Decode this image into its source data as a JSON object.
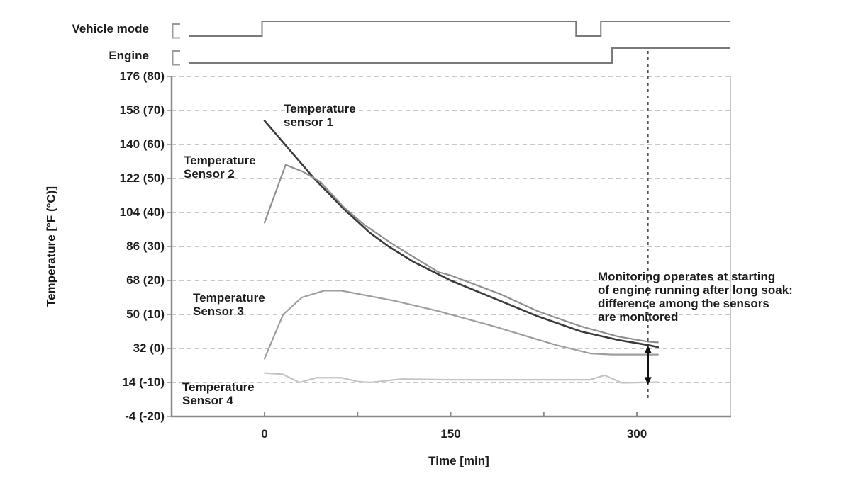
{
  "page": {
    "background": "#ffffff"
  },
  "signals": {
    "color": "#7a7a7a",
    "bracket_color": "#9a9a9a",
    "rows": [
      {
        "id": "vehicle_mode",
        "label": "Vehicle mode",
        "breakpoints_min": [
          [
            -61,
            0
          ],
          [
            -2,
            1
          ],
          [
            251,
            0
          ],
          [
            271,
            1
          ]
        ],
        "end_min": 375
      },
      {
        "id": "engine",
        "label": "Engine",
        "breakpoints_min": [
          [
            -61,
            0
          ],
          [
            280,
            1
          ]
        ],
        "end_min": 375
      }
    ]
  },
  "chart_data": {
    "type": "line",
    "title": "",
    "xlabel": "Time [min]",
    "ylabel": "Temperature [°F (°C)]",
    "x_unit": "min",
    "y_unit": "°F (°C)",
    "xlim_min": [
      -75,
      375
    ],
    "ylim_c": [
      -20,
      80
    ],
    "grid": "horizontal dashed",
    "x_ticks": [
      {
        "t": 0,
        "label": "0"
      },
      {
        "t": 75,
        "label": ""
      },
      {
        "t": 150,
        "label": "150"
      },
      {
        "t": 225,
        "label": ""
      },
      {
        "t": 300,
        "label": "300"
      }
    ],
    "y_ticks": [
      {
        "c": 80,
        "label": "176 (80)"
      },
      {
        "c": 70,
        "label": "158 (70)"
      },
      {
        "c": 60,
        "label": "140 (60)"
      },
      {
        "c": 50,
        "label": "122 (50)"
      },
      {
        "c": 40,
        "label": "104 (40)"
      },
      {
        "c": 30,
        "label": "86 (30)"
      },
      {
        "c": 20,
        "label": "68 (20)"
      },
      {
        "c": 10,
        "label": "50 (10)"
      },
      {
        "c": 0,
        "label": "32 (0)"
      },
      {
        "c": -10,
        "label": "14 (-10)"
      },
      {
        "c": -20,
        "label": "-4 (-20)"
      }
    ],
    "series": [
      {
        "name": "Temperature sensor 1",
        "label": "Temperature\nsensor 1",
        "color": "#3a3a3a",
        "width": 2.6,
        "points_t_c": [
          [
            0,
            67
          ],
          [
            20,
            58.5
          ],
          [
            40,
            50
          ],
          [
            64,
            41
          ],
          [
            85,
            34
          ],
          [
            100,
            30
          ],
          [
            120,
            25.5
          ],
          [
            150,
            20
          ],
          [
            190,
            14
          ],
          [
            220,
            9.5
          ],
          [
            255,
            5
          ],
          [
            285,
            2.5
          ],
          [
            309,
            1
          ],
          [
            317,
            0.4
          ]
        ]
      },
      {
        "name": "Temperature Sensor 2",
        "label": "Temperature\nSensor 2",
        "color": "#8f8f8f",
        "width": 2.2,
        "points_t_c": [
          [
            0,
            37
          ],
          [
            17,
            54
          ],
          [
            31,
            52
          ],
          [
            45,
            49
          ],
          [
            64,
            41.5
          ],
          [
            80,
            36.5
          ],
          [
            104,
            30.5
          ],
          [
            140,
            22.5
          ],
          [
            150,
            21.5
          ],
          [
            190,
            16
          ],
          [
            220,
            11
          ],
          [
            255,
            6.5
          ],
          [
            285,
            3.5
          ],
          [
            309,
            2
          ],
          [
            317,
            1.8
          ]
        ]
      },
      {
        "name": "Temperature Sensor 3",
        "label": "Temperature\nSensor 3",
        "color": "#9e9e9e",
        "width": 2.2,
        "points_t_c": [
          [
            0,
            -3
          ],
          [
            15,
            10
          ],
          [
            30,
            15
          ],
          [
            48,
            17
          ],
          [
            62,
            17
          ],
          [
            105,
            14
          ],
          [
            140,
            11
          ],
          [
            185,
            6.5
          ],
          [
            235,
            1
          ],
          [
            263,
            -1.5
          ],
          [
            280,
            -1.8
          ],
          [
            317,
            -1.8
          ]
        ]
      },
      {
        "name": "Temperature Sensor 4",
        "label": "Temperature\nSensor 4",
        "color": "#c4c4c4",
        "width": 2.2,
        "points_t_c": [
          [
            0,
            -7.2
          ],
          [
            15,
            -7.6
          ],
          [
            28,
            -10
          ],
          [
            42,
            -8.6
          ],
          [
            62,
            -8.6
          ],
          [
            75,
            -9.7
          ],
          [
            85,
            -10
          ],
          [
            110,
            -9
          ],
          [
            150,
            -9.2
          ],
          [
            262,
            -9.2
          ],
          [
            274,
            -7.9
          ],
          [
            288,
            -10.1
          ],
          [
            317,
            -9.9
          ]
        ]
      }
    ],
    "annotations": {
      "monitor_line_t_min": 309,
      "arrow_from_c": 0.9,
      "arrow_to_c": -10.7,
      "note": "Monitoring operates at starting\nof engine running after long soak:\ndifference among the sensors\nare monitored"
    },
    "colors": {
      "grid": "#b5b5b5",
      "axis": "#8a8a8a",
      "right_border": "#b5b5b5",
      "monitor_line": "#555555",
      "arrow": "#111111",
      "text": "#1c1c1c"
    }
  }
}
